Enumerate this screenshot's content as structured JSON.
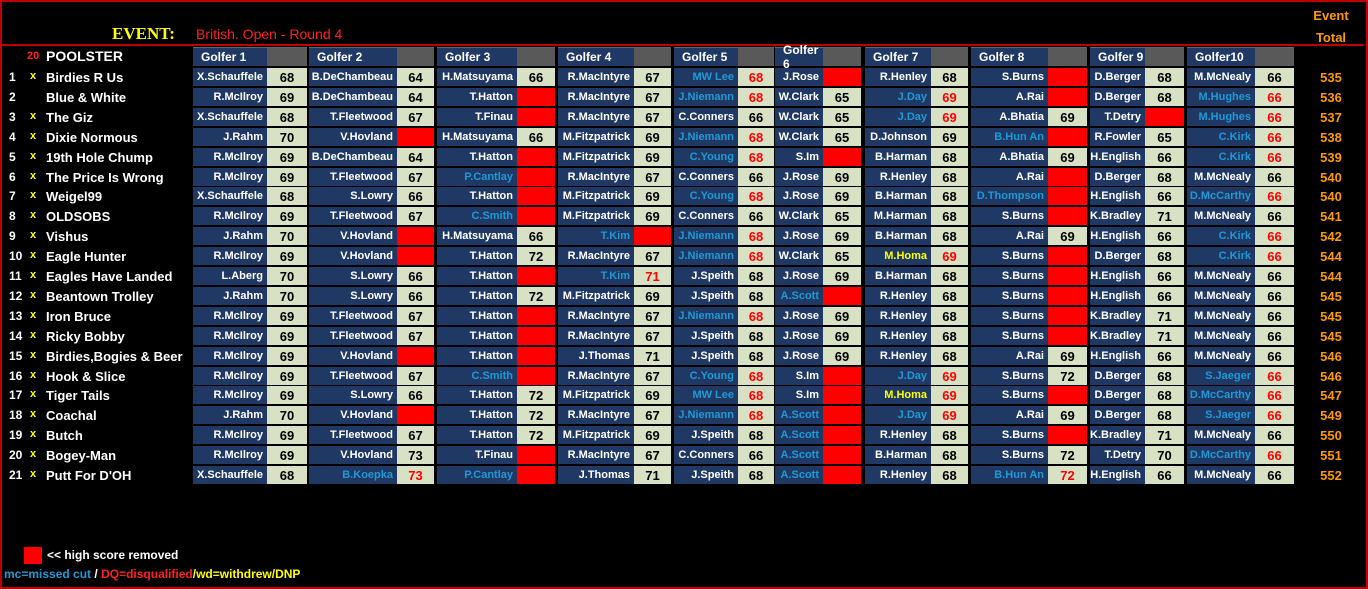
{
  "header": {
    "event_label": "EVENT:",
    "event_name": "British. Open - Round 4",
    "event_total_l1": "Event",
    "event_total_l2": "Total",
    "count": "20",
    "poolster": "POOLSTER"
  },
  "golfer_headers": [
    "Golfer 1",
    "Golfer 2",
    "Golfer 3",
    "Golfer 4",
    "Golfer 5",
    "Golfer 6",
    "Golfer 7",
    "Golfer 8",
    "Golfer 9",
    "Golfer10"
  ],
  "rows": [
    {
      "n": "1",
      "x": "x",
      "name": "Birdies R Us",
      "picks": [
        [
          "X.Schauffele",
          "68"
        ],
        [
          "B.DeChambeau",
          "64"
        ],
        [
          "H.Matsuyama",
          "66"
        ],
        [
          "R.MacIntyre",
          "67"
        ],
        [
          "MW Lee",
          "68",
          "mc"
        ],
        [
          "J.Rose",
          "",
          "red"
        ],
        [
          "R.Henley",
          "68"
        ],
        [
          "S.Burns",
          "",
          "red"
        ],
        [
          "D.Berger",
          "68"
        ],
        [
          "M.McNealy",
          "66"
        ]
      ],
      "total": "535"
    },
    {
      "n": "2",
      "x": "",
      "name": "Blue & White",
      "picks": [
        [
          "R.McIlroy",
          "69"
        ],
        [
          "B.DeChambeau",
          "64"
        ],
        [
          "T.Hatton",
          "",
          "red"
        ],
        [
          "R.MacIntyre",
          "67"
        ],
        [
          "J.Niemann",
          "68",
          "mc"
        ],
        [
          "W.Clark",
          "65"
        ],
        [
          "J.Day",
          "69",
          "mc"
        ],
        [
          "A.Rai",
          "",
          "red"
        ],
        [
          "D.Berger",
          "68"
        ],
        [
          "M.Hughes",
          "66",
          "mc"
        ]
      ],
      "total": "536"
    },
    {
      "n": "3",
      "x": "x",
      "name": "The Giz",
      "picks": [
        [
          "X.Schauffele",
          "68"
        ],
        [
          "T.Fleetwood",
          "67"
        ],
        [
          "T.Finau",
          "",
          "red"
        ],
        [
          "R.MacIntyre",
          "67"
        ],
        [
          "C.Conners",
          "66"
        ],
        [
          "W.Clark",
          "65"
        ],
        [
          "J.Day",
          "69",
          "mc"
        ],
        [
          "A.Bhatia",
          "69"
        ],
        [
          "T.Detry",
          "",
          "red"
        ],
        [
          "M.Hughes",
          "66",
          "mc"
        ]
      ],
      "total": "537"
    },
    {
      "n": "4",
      "x": "x",
      "name": "Dixie Normous",
      "picks": [
        [
          "J.Rahm",
          "70"
        ],
        [
          "V.Hovland",
          "",
          "red"
        ],
        [
          "H.Matsuyama",
          "66"
        ],
        [
          "M.Fitzpatrick",
          "69"
        ],
        [
          "J.Niemann",
          "68",
          "mc"
        ],
        [
          "W.Clark",
          "65"
        ],
        [
          "D.Johnson",
          "69"
        ],
        [
          "B.Hun An",
          "",
          "redmc"
        ],
        [
          "R.Fowler",
          "65"
        ],
        [
          "C.Kirk",
          "66",
          "mc"
        ]
      ],
      "total": "538"
    },
    {
      "n": "5",
      "x": "x",
      "name": "19th Hole Chump",
      "picks": [
        [
          "R.McIlroy",
          "69"
        ],
        [
          "B.DeChambeau",
          "64"
        ],
        [
          "T.Hatton",
          "",
          "red"
        ],
        [
          "M.Fitzpatrick",
          "69"
        ],
        [
          "C.Young",
          "68",
          "mc"
        ],
        [
          "S.Im",
          "",
          "red"
        ],
        [
          "B.Harman",
          "68"
        ],
        [
          "A.Bhatia",
          "69"
        ],
        [
          "H.English",
          "66"
        ],
        [
          "C.Kirk",
          "66",
          "mc"
        ]
      ],
      "total": "539"
    },
    {
      "n": "6",
      "x": "x",
      "name": "The Price Is Wrong",
      "picks": [
        [
          "R.McIlroy",
          "69"
        ],
        [
          "T.Fleetwood",
          "67"
        ],
        [
          "P.Cantlay",
          "",
          "redmc"
        ],
        [
          "R.MacIntyre",
          "67"
        ],
        [
          "C.Conners",
          "66"
        ],
        [
          "J.Rose",
          "69"
        ],
        [
          "R.Henley",
          "68"
        ],
        [
          "A.Rai",
          "",
          "red"
        ],
        [
          "D.Berger",
          "68"
        ],
        [
          "M.McNealy",
          "66"
        ]
      ],
      "total": "540"
    },
    {
      "n": "7",
      "x": "x",
      "name": "Weigel99",
      "picks": [
        [
          "X.Schauffele",
          "68"
        ],
        [
          "S.Lowry",
          "66"
        ],
        [
          "T.Hatton",
          "",
          "red"
        ],
        [
          "M.Fitzpatrick",
          "69"
        ],
        [
          "C.Young",
          "68",
          "mc"
        ],
        [
          "J.Rose",
          "69"
        ],
        [
          "B.Harman",
          "68"
        ],
        [
          "D.Thompson",
          "",
          "redmc"
        ],
        [
          "H.English",
          "66"
        ],
        [
          "D.McCarthy",
          "66",
          "mc"
        ]
      ],
      "total": "540"
    },
    {
      "n": "8",
      "x": "x",
      "name": "OLDSOBS",
      "picks": [
        [
          "R.McIlroy",
          "69"
        ],
        [
          "T.Fleetwood",
          "67"
        ],
        [
          "C.Smith",
          "",
          "redmc"
        ],
        [
          "M.Fitzpatrick",
          "69"
        ],
        [
          "C.Conners",
          "66"
        ],
        [
          "W.Clark",
          "65"
        ],
        [
          "M.Harman",
          "68"
        ],
        [
          "S.Burns",
          "",
          "red"
        ],
        [
          "K.Bradley",
          "71"
        ],
        [
          "M.McNealy",
          "66"
        ]
      ],
      "total": "541"
    },
    {
      "n": "9",
      "x": "x",
      "name": "Vishus",
      "picks": [
        [
          "J.Rahm",
          "70"
        ],
        [
          "V.Hovland",
          "",
          "red"
        ],
        [
          "H.Matsuyama",
          "66"
        ],
        [
          "T.Kim",
          "",
          "redmc"
        ],
        [
          "J.Niemann",
          "68",
          "mc"
        ],
        [
          "J.Rose",
          "69"
        ],
        [
          "B.Harman",
          "68"
        ],
        [
          "A.Rai",
          "69"
        ],
        [
          "H.English",
          "66"
        ],
        [
          "C.Kirk",
          "66",
          "mc"
        ]
      ],
      "total": "542"
    },
    {
      "n": "10",
      "x": "x",
      "name": "Eagle Hunter",
      "picks": [
        [
          "R.McIlroy",
          "69"
        ],
        [
          "V.Hovland",
          "",
          "red"
        ],
        [
          "T.Hatton",
          "72"
        ],
        [
          "R.MacIntyre",
          "67"
        ],
        [
          "J.Niemann",
          "68",
          "mc"
        ],
        [
          "W.Clark",
          "65"
        ],
        [
          "M.Homa",
          "69",
          "wd"
        ],
        [
          "S.Burns",
          "",
          "red"
        ],
        [
          "D.Berger",
          "68"
        ],
        [
          "C.Kirk",
          "66",
          "mc"
        ]
      ],
      "total": "544"
    },
    {
      "n": "11",
      "x": "x",
      "name": "Eagles Have Landed",
      "picks": [
        [
          "L.Aberg",
          "70"
        ],
        [
          "S.Lowry",
          "66"
        ],
        [
          "T.Hatton",
          "",
          "red"
        ],
        [
          "T.Kim",
          "71",
          "mc"
        ],
        [
          "J.Speith",
          "68"
        ],
        [
          "J.Rose",
          "69"
        ],
        [
          "B.Harman",
          "68"
        ],
        [
          "S.Burns",
          "",
          "red"
        ],
        [
          "H.English",
          "66"
        ],
        [
          "M.McNealy",
          "66"
        ]
      ],
      "total": "544"
    },
    {
      "n": "12",
      "x": "x",
      "name": "Beantown Trolley",
      "picks": [
        [
          "J.Rahm",
          "70"
        ],
        [
          "S.Lowry",
          "66"
        ],
        [
          "T.Hatton",
          "72"
        ],
        [
          "M.Fitzpatrick",
          "69"
        ],
        [
          "J.Speith",
          "68"
        ],
        [
          "A.Scott",
          "",
          "redmc"
        ],
        [
          "R.Henley",
          "68"
        ],
        [
          "S.Burns",
          "",
          "red"
        ],
        [
          "H.English",
          "66"
        ],
        [
          "M.McNealy",
          "66"
        ]
      ],
      "total": "545"
    },
    {
      "n": "13",
      "x": "x",
      "name": "Iron Bruce",
      "picks": [
        [
          "R.McIlroy",
          "69"
        ],
        [
          "T.Fleetwood",
          "67"
        ],
        [
          "T.Hatton",
          "",
          "red"
        ],
        [
          "R.MacIntyre",
          "67"
        ],
        [
          "J.Niemann",
          "68",
          "mc"
        ],
        [
          "J.Rose",
          "69"
        ],
        [
          "R.Henley",
          "68"
        ],
        [
          "S.Burns",
          "",
          "red"
        ],
        [
          "K.Bradley",
          "71"
        ],
        [
          "M.McNealy",
          "66"
        ]
      ],
      "total": "545"
    },
    {
      "n": "14",
      "x": "x",
      "name": "Ricky Bobby",
      "picks": [
        [
          "R.McIlroy",
          "69"
        ],
        [
          "T.Fleetwood",
          "67"
        ],
        [
          "T.Hatton",
          "",
          "red"
        ],
        [
          "R.MacIntyre",
          "67"
        ],
        [
          "J.Speith",
          "68"
        ],
        [
          "J.Rose",
          "69"
        ],
        [
          "R.Henley",
          "68"
        ],
        [
          "S.Burns",
          "",
          "red"
        ],
        [
          "K.Bradley",
          "71"
        ],
        [
          "M.McNealy",
          "66"
        ]
      ],
      "total": "545"
    },
    {
      "n": "15",
      "x": "x",
      "name": "Birdies,Bogies & Beer",
      "picks": [
        [
          "R.McIlroy",
          "69"
        ],
        [
          "V.Hovland",
          "",
          "red"
        ],
        [
          "T.Hatton",
          "",
          "red"
        ],
        [
          "J.Thomas",
          "71"
        ],
        [
          "J.Speith",
          "68"
        ],
        [
          "J.Rose",
          "69"
        ],
        [
          "R.Henley",
          "68"
        ],
        [
          "A.Rai",
          "69"
        ],
        [
          "H.English",
          "66"
        ],
        [
          "M.McNealy",
          "66"
        ]
      ],
      "total": "546"
    },
    {
      "n": "16",
      "x": "x",
      "name": "Hook & Slice",
      "picks": [
        [
          "R.McIlroy",
          "69"
        ],
        [
          "T.Fleetwood",
          "67"
        ],
        [
          "C.Smith",
          "",
          "redmc"
        ],
        [
          "R.MacIntyre",
          "67"
        ],
        [
          "C.Young",
          "68",
          "mc"
        ],
        [
          "S.Im",
          "",
          "red"
        ],
        [
          "J.Day",
          "69",
          "mc"
        ],
        [
          "S.Burns",
          "72"
        ],
        [
          "D.Berger",
          "68"
        ],
        [
          "S.Jaeger",
          "66",
          "mc"
        ]
      ],
      "total": "546"
    },
    {
      "n": "17",
      "x": "x",
      "name": "Tiger Tails",
      "picks": [
        [
          "R.McIlroy",
          "69"
        ],
        [
          "S.Lowry",
          "66"
        ],
        [
          "T.Hatton",
          "72"
        ],
        [
          "M.Fitzpatrick",
          "69"
        ],
        [
          "MW Lee",
          "68",
          "mc"
        ],
        [
          "S.Im",
          "",
          "red"
        ],
        [
          "M.Homa",
          "69",
          "wd"
        ],
        [
          "S.Burns",
          "",
          "red"
        ],
        [
          "D.Berger",
          "68"
        ],
        [
          "D.McCarthy",
          "66",
          "mc"
        ]
      ],
      "total": "547"
    },
    {
      "n": "18",
      "x": "x",
      "name": "Coachal",
      "picks": [
        [
          "J.Rahm",
          "70"
        ],
        [
          "V.Hovland",
          "",
          "red"
        ],
        [
          "T.Hatton",
          "72"
        ],
        [
          "R.MacIntyre",
          "67"
        ],
        [
          "J.Niemann",
          "68",
          "mc"
        ],
        [
          "A.Scott",
          "",
          "redmc"
        ],
        [
          "J.Day",
          "69",
          "mc"
        ],
        [
          "A.Rai",
          "69"
        ],
        [
          "D.Berger",
          "68"
        ],
        [
          "S.Jaeger",
          "66",
          "mc"
        ]
      ],
      "total": "549"
    },
    {
      "n": "19",
      "x": "x",
      "name": "Butch",
      "picks": [
        [
          "R.McIlroy",
          "69"
        ],
        [
          "T.Fleetwood",
          "67"
        ],
        [
          "T.Hatton",
          "72"
        ],
        [
          "M.Fitzpatrick",
          "69"
        ],
        [
          "J.Speith",
          "68"
        ],
        [
          "A.Scott",
          "",
          "redmc"
        ],
        [
          "R.Henley",
          "68"
        ],
        [
          "S.Burns",
          "",
          "red"
        ],
        [
          "K.Bradley",
          "71"
        ],
        [
          "M.McNealy",
          "66"
        ]
      ],
      "total": "550"
    },
    {
      "n": "20",
      "x": "x",
      "name": "Bogey-Man",
      "picks": [
        [
          "R.McIlroy",
          "69"
        ],
        [
          "V.Hovland",
          "73"
        ],
        [
          "T.Finau",
          "",
          "red"
        ],
        [
          "R.MacIntyre",
          "67"
        ],
        [
          "C.Conners",
          "66"
        ],
        [
          "A.Scott",
          "",
          "redmc"
        ],
        [
          "B.Harman",
          "68"
        ],
        [
          "S.Burns",
          "72"
        ],
        [
          "T.Detry",
          "70"
        ],
        [
          "D.McCarthy",
          "66",
          "mc"
        ]
      ],
      "total": "551"
    },
    {
      "n": "21",
      "x": "x",
      "name": "Putt For D'OH",
      "picks": [
        [
          "X.Schauffele",
          "68"
        ],
        [
          "B.Koepka",
          "73",
          "mc"
        ],
        [
          "P.Cantlay",
          "",
          "redmc"
        ],
        [
          "J.Thomas",
          "71"
        ],
        [
          "J.Speith",
          "68"
        ],
        [
          "A.Scott",
          "",
          "redmc"
        ],
        [
          "R.Henley",
          "68"
        ],
        [
          "B.Hun An",
          "72",
          "mc"
        ],
        [
          "H.English",
          "66"
        ],
        [
          "M.McNealy",
          "66"
        ]
      ],
      "total": "552"
    }
  ],
  "legend": {
    "removed": "<< high score removed",
    "mc": "mc=missed cut",
    "sep": " / ",
    "dq": "DQ=disqualified",
    "wd": "/wd=withdrew/DNP"
  },
  "colors": {
    "name_bg": "#1f3864",
    "score_bg": "#d9e1c4",
    "removed": "#ff0000",
    "missed_cut": "#1e9bd7",
    "withdrew": "#ffff00",
    "total": "#ff9900"
  }
}
